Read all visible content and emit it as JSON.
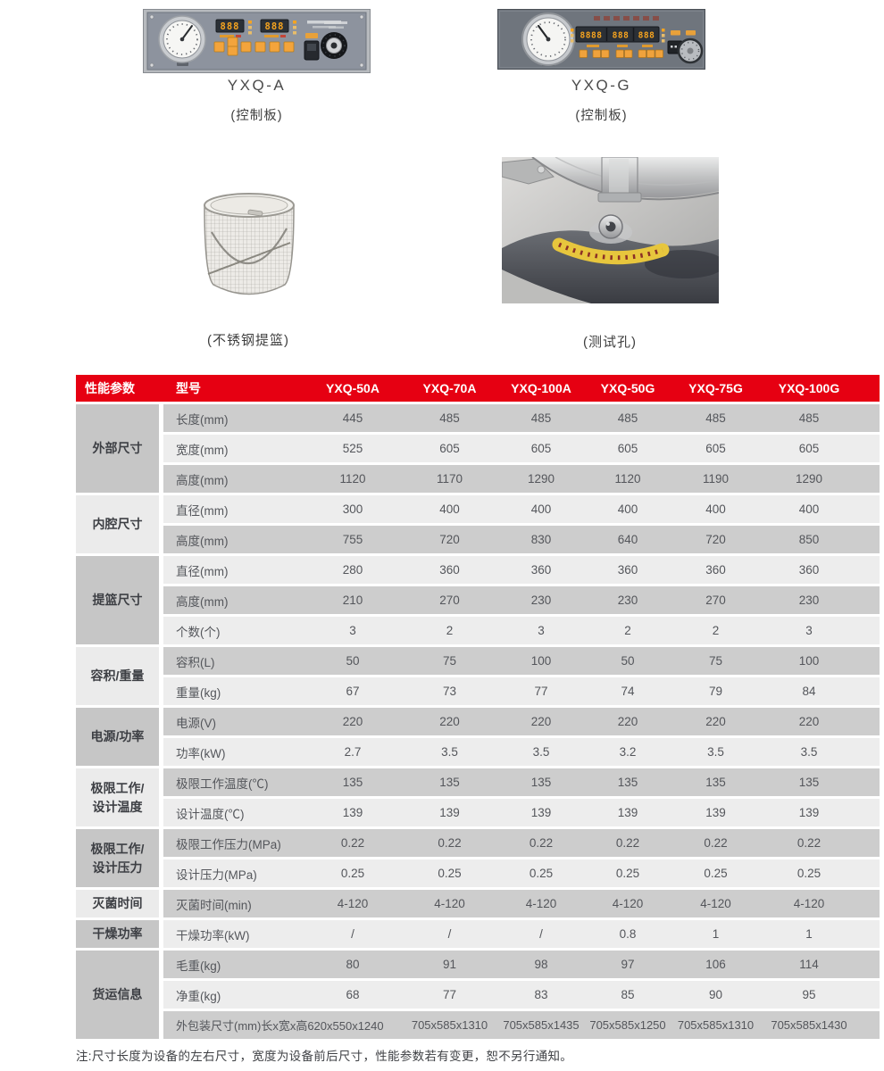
{
  "page": {
    "note": "注:尺寸长度为设备的左右尺寸，宽度为设备前后尺寸，性能参数若有变更，恕不另行通知。"
  },
  "figures": [
    {
      "label": "YXQ-A",
      "caption": "(控制板)",
      "displays": [
        "888",
        "888"
      ]
    },
    {
      "label": "YXQ-G",
      "caption": "(控制板)",
      "displays": [
        "8888",
        "888",
        "888"
      ]
    },
    {
      "caption": "(不锈钢提篮)"
    },
    {
      "caption": "(测试孔)"
    }
  ],
  "table": {
    "colors": {
      "header_bg": "#e60012",
      "header_text": "#ffffff",
      "row_dark": "#cdcdcd",
      "row_light": "#ededed",
      "group_dark": "#c6c6c6",
      "group_light": "#ebebeb",
      "text": "#54565b",
      "led_amber": "#f6a41f"
    },
    "header": {
      "col1": "性能参数",
      "col2": "型号",
      "models": [
        "YXQ-50A",
        "YXQ-70A",
        "YXQ-100A",
        "YXQ-50G",
        "YXQ-75G",
        "YXQ-100G"
      ]
    },
    "groups": [
      {
        "label_lines": [
          "外部尺寸"
        ],
        "rows": [
          {
            "param": "长度(mm)",
            "values": [
              "445",
              "485",
              "485",
              "485",
              "485",
              "485"
            ]
          },
          {
            "param": "宽度(mm)",
            "values": [
              "525",
              "605",
              "605",
              "605",
              "605",
              "605"
            ]
          },
          {
            "param": "高度(mm)",
            "values": [
              "1120",
              "1170",
              "1290",
              "1120",
              "1190",
              "1290"
            ]
          }
        ]
      },
      {
        "label_lines": [
          "内腔尺寸"
        ],
        "rows": [
          {
            "param": "直径(mm)",
            "values": [
              "300",
              "400",
              "400",
              "400",
              "400",
              "400"
            ]
          },
          {
            "param": "高度(mm)",
            "values": [
              "755",
              "720",
              "830",
              "640",
              "720",
              "850"
            ]
          }
        ]
      },
      {
        "label_lines": [
          "提篮尺寸"
        ],
        "rows": [
          {
            "param": "直径(mm)",
            "values": [
              "280",
              "360",
              "360",
              "360",
              "360",
              "360"
            ]
          },
          {
            "param": "高度(mm)",
            "values": [
              "210",
              "270",
              "230",
              "230",
              "270",
              "230"
            ]
          },
          {
            "param": "个数(个)",
            "values": [
              "3",
              "2",
              "3",
              "2",
              "2",
              "3"
            ]
          }
        ]
      },
      {
        "label_lines": [
          "容积/重量"
        ],
        "rows": [
          {
            "param": "容积(L)",
            "values": [
              "50",
              "75",
              "100",
              "50",
              "75",
              "100"
            ]
          },
          {
            "param": "重量(kg)",
            "values": [
              "67",
              "73",
              "77",
              "74",
              "79",
              "84"
            ]
          }
        ]
      },
      {
        "label_lines": [
          "电源/功率"
        ],
        "rows": [
          {
            "param": "电源(V)",
            "values": [
              "220",
              "220",
              "220",
              "220",
              "220",
              "220"
            ]
          },
          {
            "param": "功率(kW)",
            "values": [
              "2.7",
              "3.5",
              "3.5",
              "3.2",
              "3.5",
              "3.5"
            ]
          }
        ]
      },
      {
        "label_lines": [
          "极限工作/",
          "设计温度"
        ],
        "rows": [
          {
            "param": "极限工作温度(℃)",
            "values": [
              "135",
              "135",
              "135",
              "135",
              "135",
              "135"
            ]
          },
          {
            "param": "设计温度(℃)",
            "values": [
              "139",
              "139",
              "139",
              "139",
              "139",
              "139"
            ]
          }
        ]
      },
      {
        "label_lines": [
          "极限工作/",
          "设计压力"
        ],
        "rows": [
          {
            "param": "极限工作压力(MPa)",
            "values": [
              "0.22",
              "0.22",
              "0.22",
              "0.22",
              "0.22",
              "0.22"
            ]
          },
          {
            "param": "设计压力(MPa)",
            "values": [
              "0.25",
              "0.25",
              "0.25",
              "0.25",
              "0.25",
              "0.25"
            ]
          }
        ]
      },
      {
        "label_lines": [
          "灭菌时间"
        ],
        "rows": [
          {
            "param": "灭菌时间(min)",
            "values": [
              "4-120",
              "4-120",
              "4-120",
              "4-120",
              "4-120",
              "4-120"
            ]
          }
        ]
      },
      {
        "label_lines": [
          "干燥功率"
        ],
        "rows": [
          {
            "param": "干燥功率(kW)",
            "values": [
              "/",
              "/",
              "/",
              "0.8",
              "1",
              "1"
            ]
          }
        ]
      },
      {
        "label_lines": [
          "货运信息"
        ],
        "rows": [
          {
            "param": "毛重(kg)",
            "values": [
              "80",
              "91",
              "98",
              "97",
              "106",
              "114"
            ]
          },
          {
            "param": "净重(kg)",
            "values": [
              "68",
              "77",
              "83",
              "85",
              "90",
              "95"
            ]
          },
          {
            "param": "外包装尺寸(mm)长x宽x高",
            "wide": true,
            "values": [
              "620x550x1240",
              "705x585x1310",
              "705x585x1435",
              "705x585x1250",
              "705x585x1310",
              "705x585x1430"
            ]
          }
        ]
      }
    ]
  }
}
